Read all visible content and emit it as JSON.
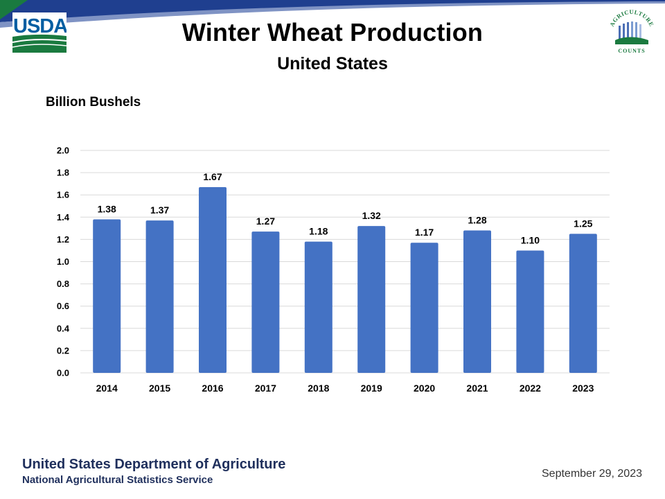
{
  "header": {
    "title": "Winter Wheat Production",
    "subtitle": "United States",
    "left_logo_text": "USDA",
    "right_logo_text": "AGRICULTURE COUNTS"
  },
  "footer": {
    "organization": "United States Department of Agriculture",
    "service": "National Agricultural Statistics Service",
    "date": "September 29, 2023"
  },
  "colors": {
    "bar": "#4472c4",
    "grid": "#d9d9d9",
    "usda_blue": "#005ea2",
    "usda_green": "#1a7a3f",
    "footer_text": "#1f2f5c"
  },
  "chart_data": {
    "type": "bar",
    "title": "Winter Wheat Production",
    "subtitle": "United States",
    "ylabel": "Billion Bushels",
    "xlabel": "",
    "categories": [
      "2014",
      "2015",
      "2016",
      "2017",
      "2018",
      "2019",
      "2020",
      "2021",
      "2022",
      "2023"
    ],
    "values": [
      1.38,
      1.37,
      1.67,
      1.27,
      1.18,
      1.32,
      1.17,
      1.28,
      1.1,
      1.25
    ],
    "value_labels": [
      "1.38",
      "1.37",
      "1.67",
      "1.27",
      "1.18",
      "1.32",
      "1.17",
      "1.28",
      "1.10",
      "1.25"
    ],
    "ylim": [
      0,
      2.0
    ],
    "yticks": [
      "0.0",
      "0.2",
      "0.4",
      "0.6",
      "0.8",
      "1.0",
      "1.2",
      "1.4",
      "1.6",
      "1.8",
      "2.0"
    ],
    "grid": true,
    "legend": "none"
  }
}
